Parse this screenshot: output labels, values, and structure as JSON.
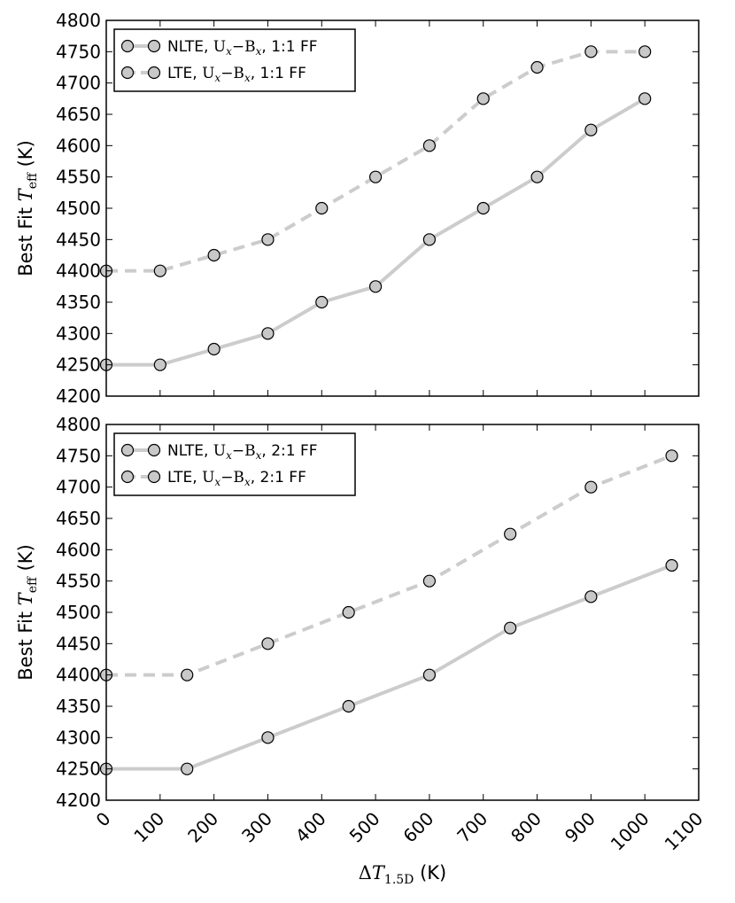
{
  "chart_data": [
    {
      "type": "line",
      "panel": "top",
      "ylabel": "Best Fit T_eff (K)",
      "ylabel_prefix": "Best Fit ",
      "ylabel_var": "T",
      "ylabel_sub": "eff",
      "ylabel_suffix": " (K)",
      "xlim": [
        0,
        1100
      ],
      "ylim": [
        4200,
        4800
      ],
      "yticks": [
        4200,
        4250,
        4300,
        4350,
        4400,
        4450,
        4500,
        4550,
        4600,
        4650,
        4700,
        4750,
        4800
      ],
      "legend_position": "top-left",
      "grid": false,
      "series": [
        {
          "name": "NLTE, U_x–B_x, 1:1 FF",
          "legend_prefix": "NLTE, ",
          "legend_suffix": ", 1:1 FF",
          "style": "solid",
          "x": [
            0,
            100,
            200,
            300,
            400,
            500,
            600,
            700,
            800,
            900,
            1000
          ],
          "y": [
            4250,
            4250,
            4275,
            4300,
            4350,
            4375,
            4450,
            4500,
            4550,
            4625,
            4675
          ]
        },
        {
          "name": "LTE, U_x–B_x, 1:1 FF",
          "legend_prefix": "LTE, ",
          "legend_suffix": ", 1:1 FF",
          "style": "dashed",
          "x": [
            0,
            100,
            200,
            300,
            400,
            500,
            600,
            700,
            800,
            900,
            1000
          ],
          "y": [
            4400,
            4400,
            4425,
            4450,
            4500,
            4550,
            4600,
            4675,
            4725,
            4750,
            4750
          ]
        }
      ]
    },
    {
      "type": "line",
      "panel": "bottom",
      "xlabel": "ΔT_1.5D (K)",
      "xlabel_delta": "Δ",
      "xlabel_var": "T",
      "xlabel_sub": "1.5D",
      "xlabel_suffix": " (K)",
      "ylabel": "Best Fit T_eff (K)",
      "ylabel_prefix": "Best Fit ",
      "ylabel_var": "T",
      "ylabel_sub": "eff",
      "ylabel_suffix": " (K)",
      "xlim": [
        0,
        1100
      ],
      "ylim": [
        4200,
        4800
      ],
      "xticks": [
        0,
        100,
        200,
        300,
        400,
        500,
        600,
        700,
        800,
        900,
        1000,
        1100
      ],
      "yticks": [
        4200,
        4250,
        4300,
        4350,
        4400,
        4450,
        4500,
        4550,
        4600,
        4650,
        4700,
        4750,
        4800
      ],
      "legend_position": "top-left",
      "grid": false,
      "series": [
        {
          "name": "NLTE, U_x–B_x, 2:1 FF",
          "legend_prefix": "NLTE, ",
          "legend_suffix": ", 2:1 FF",
          "style": "solid",
          "x": [
            0,
            150,
            300,
            450,
            600,
            750,
            900,
            1050
          ],
          "y": [
            4250,
            4250,
            4300,
            4350,
            4400,
            4475,
            4525,
            4575
          ]
        },
        {
          "name": "LTE, U_x–B_x, 2:1 FF",
          "legend_prefix": "LTE, ",
          "legend_suffix": ", 2:1 FF",
          "style": "dashed",
          "x": [
            0,
            150,
            300,
            450,
            600,
            750,
            900,
            1050
          ],
          "y": [
            4400,
            4400,
            4450,
            4500,
            4550,
            4625,
            4700,
            4750
          ]
        }
      ]
    }
  ],
  "colors": {
    "line": "#cccccc",
    "marker_fill": "#c8c8c8",
    "marker_edge": "#000000",
    "axes": "#000000"
  }
}
